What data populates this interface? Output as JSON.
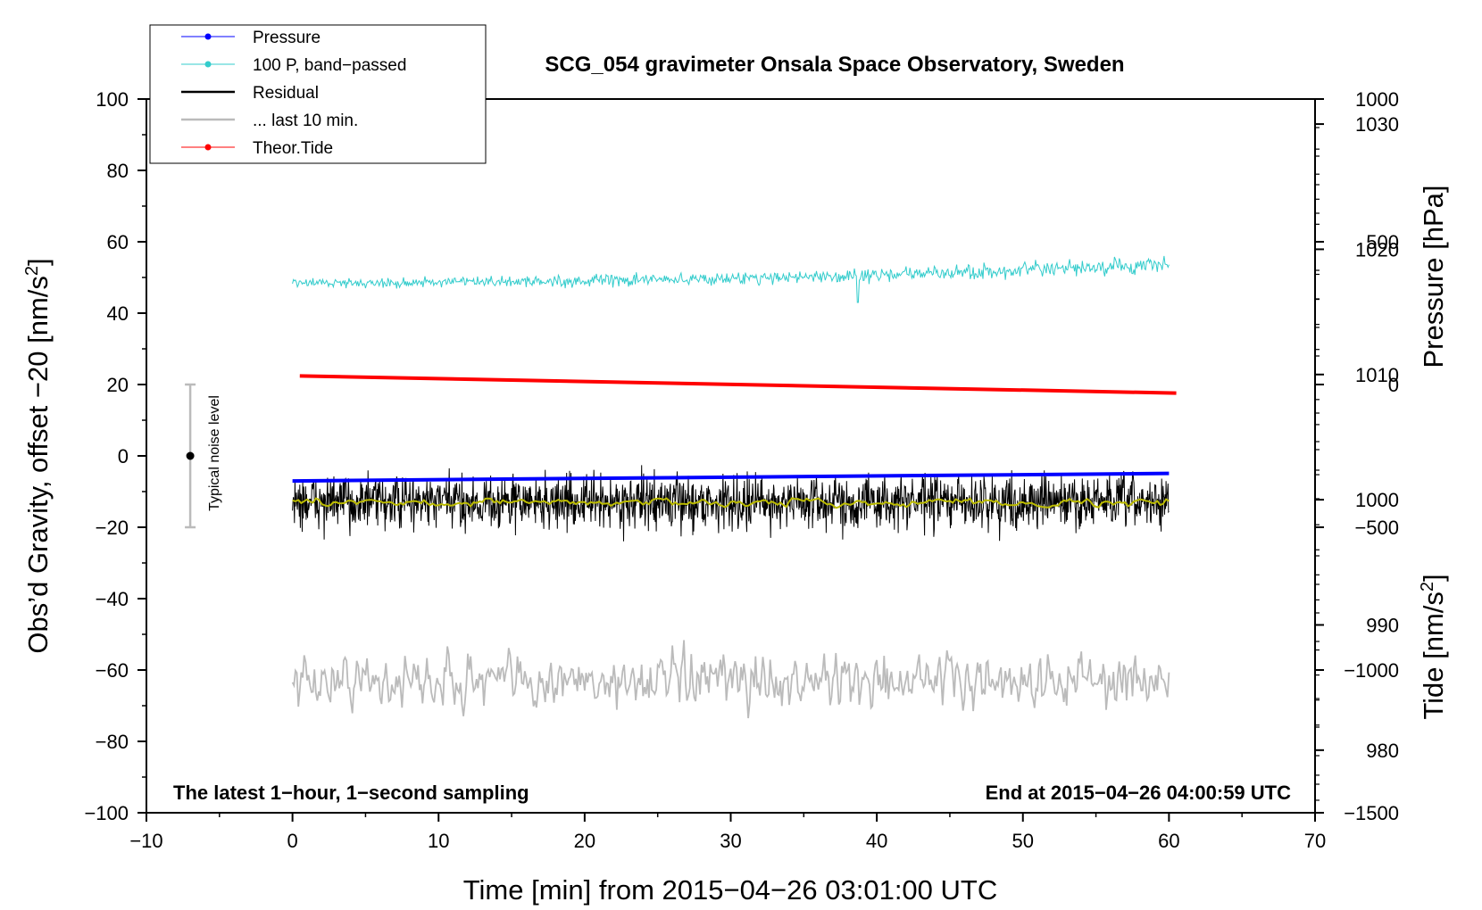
{
  "chart_data": {
    "type": "line",
    "title": "SCG_054 gravimeter Onsala Space Observatory, Sweden",
    "xlabel": "Time [min] from 2015−04−26 03:01:00 UTC",
    "ylabel_left_main": "Obs’d Gravity, offset −20 [nm/s",
    "ylabel_left_sup": "2",
    "ylabel_left_end": "]",
    "ylabel_right_top": "Pressure [hPa]",
    "ylabel_right_bottom_main": "Tide [nm/s",
    "ylabel_right_bottom_sup": "2",
    "ylabel_right_bottom_end": "]",
    "xlim": [
      -10,
      70
    ],
    "ylim": [
      -100,
      100
    ],
    "pressure_axis_range": [
      975,
      1032
    ],
    "tide_axis_range": [
      -1500,
      1000
    ],
    "x_ticks": [
      -10,
      0,
      10,
      20,
      30,
      40,
      50,
      60,
      70
    ],
    "x_tick_labels": [
      "−10",
      "0",
      "10",
      "20",
      "30",
      "40",
      "50",
      "60",
      "70"
    ],
    "y_ticks": [
      -100,
      -80,
      -60,
      -40,
      -20,
      0,
      20,
      40,
      60,
      80,
      100
    ],
    "y_tick_labels": [
      "−100",
      "−80",
      "−60",
      "−40",
      "−20",
      "0",
      "20",
      "40",
      "60",
      "80",
      "100"
    ],
    "pressure_ticks": [
      980,
      990,
      1000,
      1010,
      1020,
      1030
    ],
    "pressure_tick_labels": [
      "980",
      "990",
      "1000",
      "1010",
      "1020",
      "1030"
    ],
    "tide_ticks": [
      1000,
      500,
      0,
      -500,
      -1000,
      -1500
    ],
    "tide_tick_labels": [
      "1000",
      "500",
      "0",
      "−500",
      "−1000",
      "−1500"
    ],
    "grid": false,
    "legend_position": "top-left",
    "legend": [
      {
        "label": "Pressure",
        "color": "#0000ff",
        "marker": true
      },
      {
        "label": "100 P, band−passed",
        "color": "#33cccc",
        "marker": true
      },
      {
        "label": "Residual",
        "color": "#000000",
        "marker": false
      },
      {
        "label": "... last 10 min.",
        "color": "#bbbbbb",
        "marker": false
      },
      {
        "label": "Theor.Tide",
        "color": "#ff0000",
        "marker": true
      }
    ],
    "annotation_left": "The latest 1−hour, 1−second sampling",
    "annotation_right": "End at 2015−04−26 04:00:59 UTC",
    "noise_label": "Typical noise level",
    "noise_bar": {
      "x": -7,
      "center": 0,
      "low": -20,
      "high": 20
    },
    "series": [
      {
        "name": "Pressure",
        "axis": "pressure",
        "color": "#0000ff",
        "x_range": [
          0,
          60
        ],
        "start": 1001.5,
        "end": 1002.1
      },
      {
        "name": "100 P, band-passed",
        "axis": "gravity",
        "color": "#33cccc",
        "x_range": [
          0,
          60
        ],
        "start": 48.5,
        "end": 53.5,
        "noise_amplitude": 1.6
      },
      {
        "name": "Residual",
        "axis": "gravity",
        "color": "#000000",
        "x_range": [
          0,
          60
        ],
        "mean": -13,
        "noise_amplitude": 7
      },
      {
        "name": "Residual (smoothed)",
        "axis": "gravity",
        "color": "#bbbb00",
        "x_range": [
          0,
          60
        ],
        "mean": -13,
        "noise_amplitude": 1.2
      },
      {
        "name": "... last 10 min.",
        "axis": "gravity",
        "color": "#bbbbbb",
        "x_range": [
          0,
          60
        ],
        "mean": -63,
        "noise_amplitude": 5
      },
      {
        "name": "Theor.Tide",
        "axis": "tide",
        "color": "#ff0000",
        "x_range": [
          0.5,
          60.5
        ],
        "start": 30,
        "end": -30
      }
    ]
  },
  "colors": {
    "pressure": "#0000ff",
    "bandpassed": "#33cccc",
    "residual": "#000000",
    "smoothed": "#bbbb00",
    "last10": "#bbbbbb",
    "tide": "#ff0000",
    "noise_bar": "#bbbbbb"
  }
}
